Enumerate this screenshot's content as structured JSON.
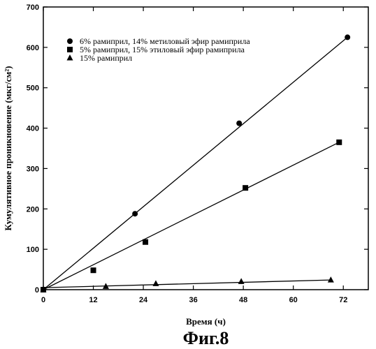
{
  "chart_data": {
    "type": "scatter",
    "title": "",
    "xlabel": "Время (ч)",
    "ylabel": "Кумулятивное проникновение (мкг/см²)",
    "xlim": [
      0,
      78
    ],
    "ylim": [
      0,
      700
    ],
    "xticks": [
      0,
      12,
      24,
      36,
      48,
      60,
      72
    ],
    "yticks": [
      0,
      100,
      200,
      300,
      400,
      500,
      600,
      700
    ],
    "grid": false,
    "legend_position": "top-left",
    "series": [
      {
        "name": "6% рамиприл, 14% метиловый эфир рамиприла",
        "marker": "circle",
        "color": "#000000",
        "x": [
          0,
          22,
          47,
          73
        ],
        "y": [
          0,
          188,
          412,
          625
        ],
        "fit": [
          [
            0,
            0
          ],
          [
            73,
            625
          ]
        ]
      },
      {
        "name": "5% рамиприл, 15% этиловый эфир рамиприла",
        "marker": "square",
        "color": "#000000",
        "x": [
          0,
          12,
          24.5,
          48.5,
          71
        ],
        "y": [
          0,
          48,
          118,
          252,
          365
        ],
        "fit": [
          [
            0,
            0
          ],
          [
            71,
            365
          ]
        ]
      },
      {
        "name": "15% рамиприл",
        "marker": "triangle",
        "color": "#000000",
        "x": [
          0,
          15,
          27,
          47.5,
          69
        ],
        "y": [
          0,
          8,
          15,
          20,
          24
        ],
        "fit": [
          [
            0,
            5
          ],
          [
            69,
            24
          ]
        ]
      }
    ],
    "caption": "Фиг.8"
  }
}
